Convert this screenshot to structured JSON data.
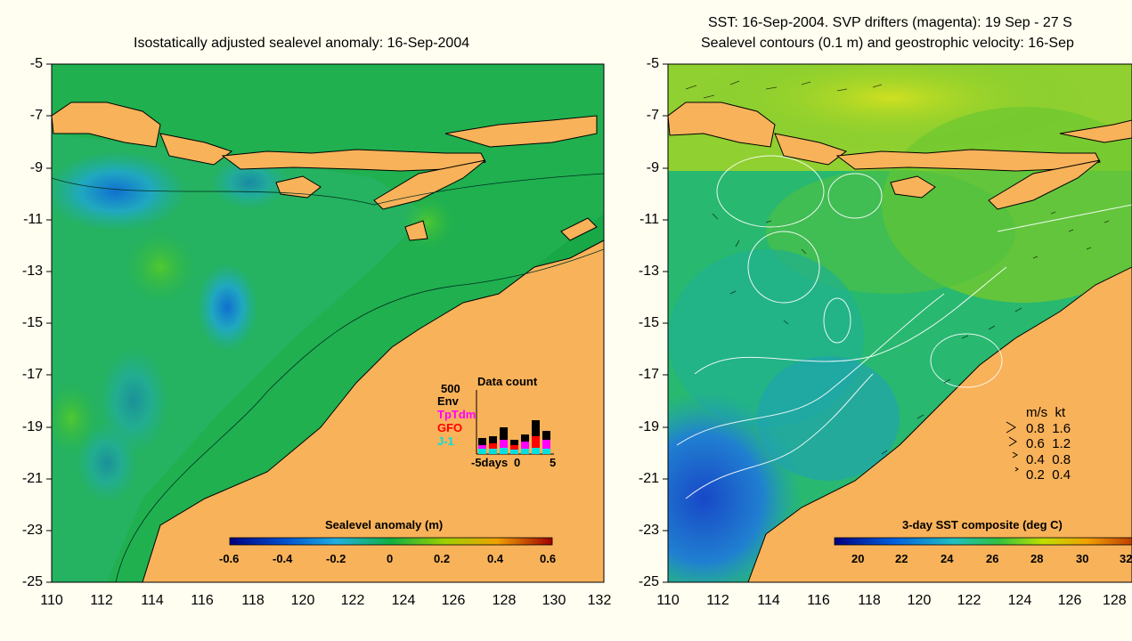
{
  "left_panel": {
    "title": "Isostatically adjusted sealevel anomaly: 16-Sep-2004",
    "colorbar_label": "Sealevel anomaly (m)",
    "colorbar_ticks": [
      "-0.6",
      "-0.4",
      "-0.2",
      "0",
      "0.2",
      "0.4",
      "0.6"
    ],
    "y_ticks": [
      "-5",
      "-7",
      "-9",
      "-11",
      "-13",
      "-15",
      "-17",
      "-19",
      "-21",
      "-23",
      "-25"
    ],
    "x_ticks": [
      "110",
      "112",
      "114",
      "116",
      "118",
      "120",
      "122",
      "124",
      "126",
      "128",
      "130",
      "132"
    ],
    "data_count": {
      "title": "Data count",
      "scale_label": "500",
      "legend": [
        {
          "label": "Env",
          "color": "#000000"
        },
        {
          "label": "TpTdm",
          "color": "#ff00ff"
        },
        {
          "label": "GFO",
          "color": "#ff0000"
        },
        {
          "label": "J-1",
          "color": "#00e0e0"
        }
      ],
      "x_labels": [
        "-5days",
        "0",
        "5"
      ]
    }
  },
  "right_panel": {
    "title_line1": "SST: 16-Sep-2004. SVP drifters (magenta): 19 Sep - 27 S",
    "title_line2": "Sealevel contours (0.1 m) and geostrophic velocity: 16-Sep",
    "colorbar_label": "3-day SST composite (deg C)",
    "colorbar_ticks": [
      "20",
      "22",
      "24",
      "26",
      "28",
      "30",
      "32"
    ],
    "y_ticks": [
      "-5",
      "-7",
      "-9",
      "-11",
      "-13",
      "-15",
      "-17",
      "-19",
      "-21",
      "-23",
      "-25"
    ],
    "x_ticks": [
      "110",
      "112",
      "114",
      "116",
      "118",
      "120",
      "122",
      "124",
      "126",
      "128"
    ],
    "velocity_legend": {
      "header_ms": "m/s",
      "header_kt": "kt",
      "rows": [
        {
          "ms": "0.8",
          "kt": "1.6"
        },
        {
          "ms": "0.6",
          "kt": "1.2"
        },
        {
          "ms": "0.4",
          "kt": "0.8"
        },
        {
          "ms": "0.2",
          "kt": "0.4"
        }
      ]
    }
  },
  "colors": {
    "land": "#f8b25a",
    "sla_ocean": "#1fb24a",
    "background": "#fffef0"
  }
}
